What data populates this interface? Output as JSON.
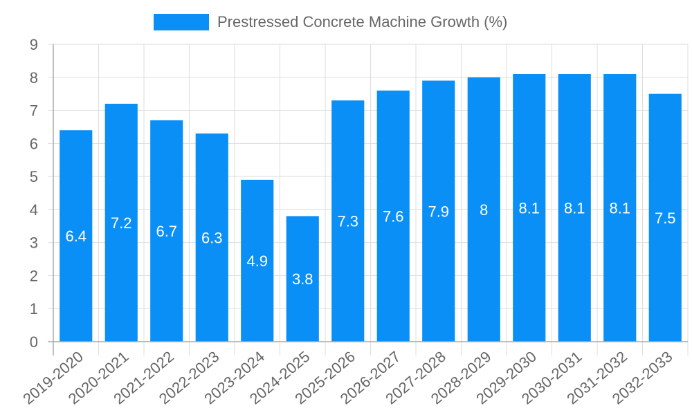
{
  "chart_data": {
    "type": "bar",
    "title": "",
    "legend": [
      "Prestressed Concrete Machine Growth (%)"
    ],
    "legend_position": "top",
    "xlabel": "",
    "ylabel": "",
    "ylim": [
      0,
      9
    ],
    "yticks": [
      0,
      1,
      2,
      3,
      4,
      5,
      6,
      7,
      8,
      9
    ],
    "grid": true,
    "categories": [
      "2019-2020",
      "2020-2021",
      "2021-2022",
      "2022-2023",
      "2023-2024",
      "2024-2025",
      "2025-2026",
      "2026-2027",
      "2027-2028",
      "2028-2029",
      "2029-2030",
      "2030-2031",
      "2031-2032",
      "2032-2033"
    ],
    "series": [
      {
        "name": "Prestressed Concrete Machine Growth (%)",
        "values": [
          6.4,
          7.2,
          6.7,
          6.3,
          4.9,
          3.8,
          7.3,
          7.6,
          7.9,
          8,
          8.1,
          8.1,
          8.1,
          7.5
        ],
        "data_labels": [
          "6.4",
          "7.2",
          "6.7",
          "6.3",
          "4.9",
          "3.8",
          "7.3",
          "7.6",
          "7.9",
          "8",
          "8.1",
          "8.1",
          "8.1",
          "7.5"
        ],
        "color": "#0a8ff7"
      }
    ]
  },
  "colors": {
    "bar": "#0a8ff7",
    "grid": "#dddddd",
    "axis": "#aaaaaa",
    "tick_text": "#666666",
    "data_label": "#ffffff"
  }
}
